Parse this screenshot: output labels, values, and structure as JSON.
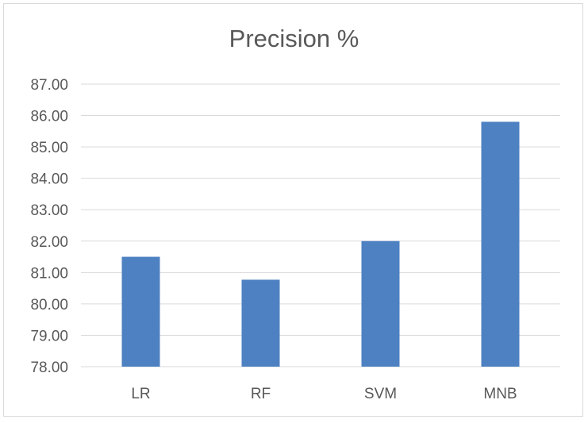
{
  "chart_data": {
    "type": "bar",
    "title": "Precision %",
    "categories": [
      "LR",
      "RF",
      "SVM",
      "MNB"
    ],
    "values": [
      81.5,
      80.77,
      82.0,
      85.8
    ],
    "ylim": [
      78,
      87
    ],
    "yticks": [
      "78.00",
      "79.00",
      "80.00",
      "81.00",
      "82.00",
      "83.00",
      "84.00",
      "85.00",
      "86.00",
      "87.00"
    ],
    "bar_color": "#4e81c2",
    "grid": true,
    "legend": "none"
  }
}
